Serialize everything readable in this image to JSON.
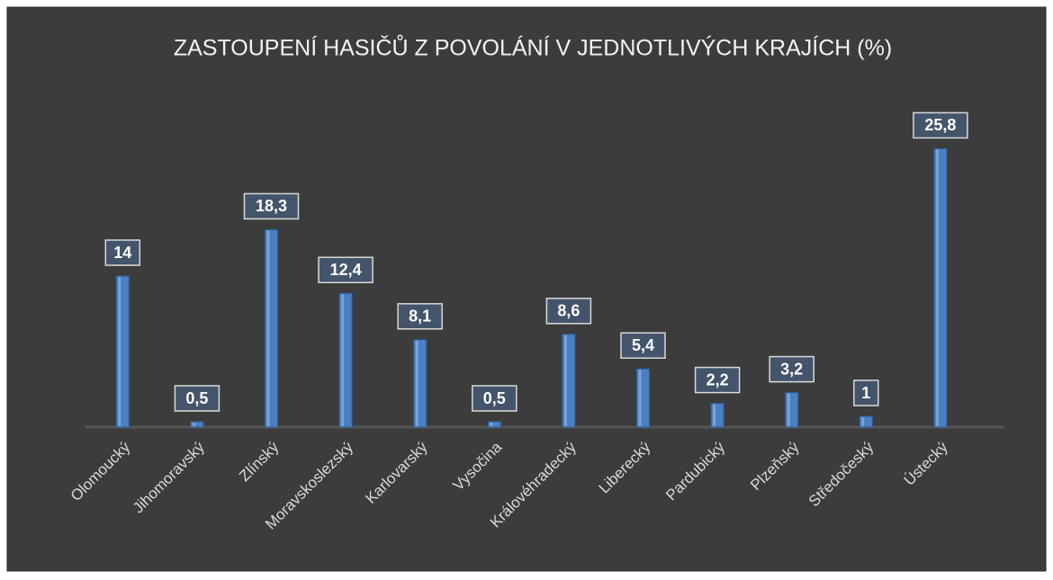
{
  "chart_data": {
    "type": "bar",
    "title": "ZASTOUPENÍ HASIČŮ Z POVOLÁNÍ V JEDNOTLIVÝCH KRAJÍCH (%)",
    "categories": [
      "Olomoucký",
      "Jihomoravský",
      "Zlínský",
      "Moravskoslezský",
      "Karlovarský",
      "Vysočina",
      "Královéhradecký",
      "Liberecký",
      "Pardubický",
      "Plzeňský",
      "Středočeský",
      "Ústecký"
    ],
    "values": [
      14,
      0.5,
      18.3,
      12.4,
      8.1,
      0.5,
      8.6,
      5.4,
      2.2,
      3.2,
      1,
      25.8
    ],
    "value_labels": [
      "14",
      "0,5",
      "18,3",
      "12,4",
      "8,1",
      "0,5",
      "8,6",
      "5,4",
      "2,2",
      "3,2",
      "1",
      "25,8"
    ],
    "color": "#4a7fc1",
    "ylim": [
      0,
      30
    ]
  }
}
